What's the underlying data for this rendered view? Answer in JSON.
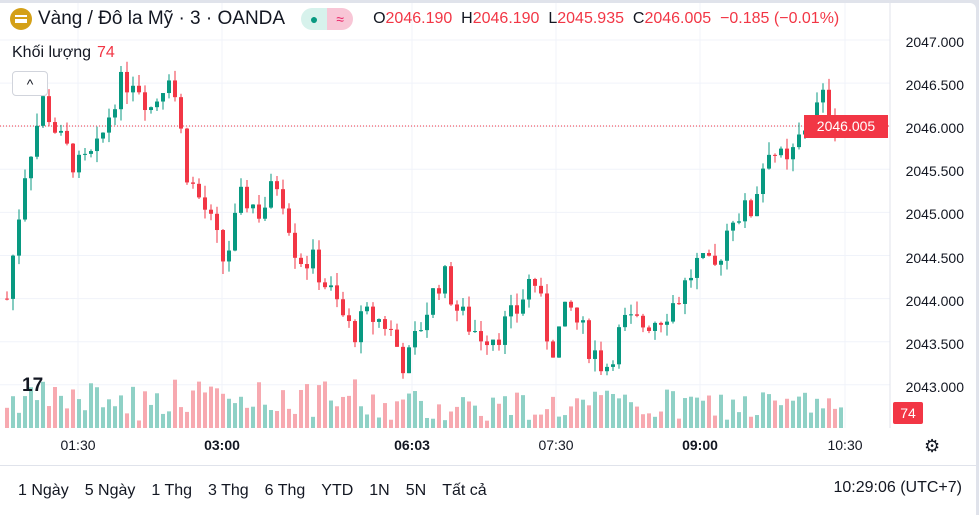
{
  "header": {
    "symbol": "Vàng / Đô la Mỹ · 3 · OANDA",
    "status_dot": "market-open",
    "indicator": "≈",
    "o_label": "O",
    "o": "2046.190",
    "h_label": "H",
    "h": "2046.190",
    "l_label": "L",
    "l": "2045.935",
    "c_label": "C",
    "c": "2046.005",
    "change": "−0.185 (−0.01%)"
  },
  "volume": {
    "label": "Khối lượng",
    "value": "74",
    "collapse": "^"
  },
  "price_axis": {
    "ticks": [
      "2047.000",
      "2046.500",
      "2046.000",
      "2045.500",
      "2045.000",
      "2044.500",
      "2044.000",
      "2043.500",
      "2043.000"
    ],
    "current_price": "2046.005",
    "volume_value": "74"
  },
  "time_axis": [
    {
      "label": "01:30",
      "bold": false
    },
    {
      "label": "03:00",
      "bold": true
    },
    {
      "label": "06:03",
      "bold": true
    },
    {
      "label": "07:30",
      "bold": false
    },
    {
      "label": "09:00",
      "bold": true
    },
    {
      "label": "10:30",
      "bold": false
    }
  ],
  "ranges": [
    "1 Ngày",
    "5 Ngày",
    "1 Thg",
    "3 Thg",
    "6 Thg",
    "YTD",
    "1N",
    "5N",
    "Tất cả"
  ],
  "clock": "10:29:06 (UTC+7)",
  "colors": {
    "up": "#089981",
    "down": "#f23645",
    "up_vol": "#8fd1c6",
    "down_vol": "#f7a9b0"
  },
  "chart_data": {
    "type": "candlestick",
    "interval": "3",
    "ylim": [
      2042.6,
      2047.1
    ],
    "price_path": [
      2044.0,
      2045.5,
      2046.3,
      2045.8,
      2045.5,
      2045.7,
      2046.4,
      2046.6,
      2046.2,
      2046.7,
      2045.4,
      2045.0,
      2044.4,
      2045.2,
      2045.0,
      2045.4,
      2044.5,
      2044.4,
      2044.0,
      2043.6,
      2043.8,
      2043.7,
      2043.2,
      2043.8,
      2044.3,
      2043.8,
      2043.6,
      2043.6,
      2043.8,
      2044.3,
      2043.4,
      2043.9,
      2043.5,
      2043.2,
      2043.7,
      2043.7,
      2043.8,
      2044.0,
      2044.4,
      2044.3,
      2045.0,
      2045.0,
      2045.8,
      2045.5,
      2046.0,
      2046.3,
      2046.005
    ]
  }
}
